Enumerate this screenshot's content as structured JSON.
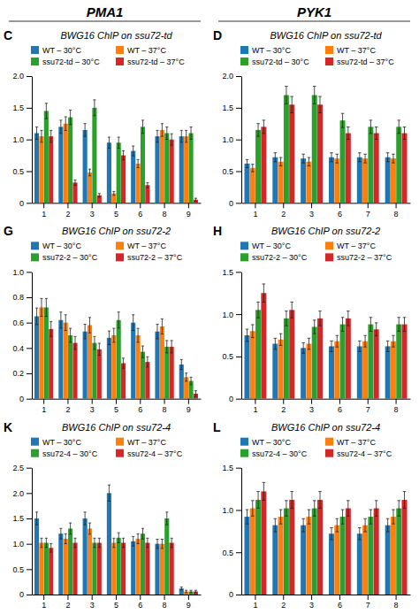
{
  "titles": [
    "PMA1",
    "PYK1"
  ],
  "chart_data": [
    {
      "type": "bar",
      "title": "BWG16 ChIP on ssu72-td",
      "annotations": [
        "C"
      ],
      "categories": [
        "1",
        "2",
        "3",
        "5",
        "6",
        "8",
        "9"
      ],
      "ylim": [
        0,
        2.0
      ],
      "yticks": [
        0,
        0.5,
        {
          "value": 1.0,
          "label": "1.0"
        },
        1.5,
        {
          "value": 2.0,
          "label": "2.0"
        }
      ],
      "grid": false,
      "legend": "upper right",
      "series": [
        {
          "name": "WT – 30°C",
          "values": [
            1.1,
            1.2,
            1.15,
            0.95,
            0.82,
            1.05,
            1.05
          ],
          "errors": [
            0.097,
            0.104,
            0.1005,
            0.0865,
            0.0774,
            0.0935,
            0.0935
          ]
        },
        {
          "name": "WT – 37°C",
          "values": [
            1.05,
            1.25,
            0.48,
            0.15,
            0.62,
            1.15,
            1.05
          ],
          "errors": [
            0.0935,
            0.1075,
            0.0536,
            0.0305,
            0.0634,
            0.1005,
            0.0935
          ]
        },
        {
          "name": "ssu72-td – 30°C",
          "values": [
            1.45,
            1.35,
            1.5,
            0.95,
            1.2,
            1.1,
            1.1
          ],
          "errors": [
            0.1215,
            0.1145,
            0.125,
            0.0865,
            0.104,
            0.097,
            0.097
          ]
        },
        {
          "name": "ssu72-td – 37°C",
          "values": [
            1.05,
            0.32,
            0.12,
            0.75,
            0.28,
            1.0,
            0.05
          ],
          "errors": [
            0.0935,
            0.0424,
            0.0284,
            0.0725,
            0.0396,
            0.09,
            0.0235
          ]
        }
      ]
    },
    {
      "type": "bar",
      "title": "BWG16 ChIP on ssu72-td",
      "annotations": [
        "D"
      ],
      "categories": [
        "1",
        "2",
        "3",
        "6",
        "7",
        "8"
      ],
      "ylim": [
        0,
        2.0
      ],
      "yticks": [
        0,
        0.5,
        {
          "value": 1.0,
          "label": "1.0"
        },
        1.5,
        {
          "value": 2.0,
          "label": "2.0"
        }
      ],
      "grid": false,
      "legend": "upper right",
      "series": [
        {
          "name": "WT – 30°C",
          "values": [
            0.62,
            0.72,
            0.7,
            0.72,
            0.72,
            0.72
          ],
          "errors": [
            0.0634,
            0.0704,
            0.069,
            0.0704,
            0.0704,
            0.0704
          ]
        },
        {
          "name": "WT – 37°C",
          "values": [
            0.55,
            0.65,
            0.65,
            0.7,
            0.7,
            0.7
          ],
          "errors": [
            0.0585,
            0.0655,
            0.0655,
            0.069,
            0.069,
            0.069
          ]
        },
        {
          "name": "ssu72-td – 30°C",
          "values": [
            1.15,
            1.7,
            1.7,
            1.3,
            1.2,
            1.2
          ],
          "errors": [
            0.1005,
            0.139,
            0.139,
            0.111,
            0.104,
            0.104
          ]
        },
        {
          "name": "ssu72-td – 37°C",
          "values": [
            1.2,
            1.55,
            1.55,
            1.1,
            1.1,
            1.1
          ],
          "errors": [
            0.104,
            0.1285,
            0.1285,
            0.097,
            0.097,
            0.097
          ]
        }
      ]
    },
    {
      "type": "bar",
      "title": "BWG16 ChIP on ssu72-2",
      "annotations": [
        "G"
      ],
      "categories": [
        "1",
        "2",
        "3",
        "5",
        "6",
        "8",
        "9"
      ],
      "ylim": [
        0,
        1.0
      ],
      "yticks": [
        0,
        0.2,
        0.4,
        0.6,
        0.8,
        {
          "value": 1.0,
          "label": "1.0"
        }
      ],
      "grid": false,
      "legend": "upper right",
      "series": [
        {
          "name": "WT – 30°C",
          "values": [
            0.65,
            0.62,
            0.53,
            0.48,
            0.6,
            0.53,
            0.27
          ],
          "errors": [
            0.0655,
            0.0634,
            0.0571,
            0.0536,
            0.062,
            0.0571,
            0.0389
          ]
        },
        {
          "name": "WT – 37°C",
          "values": [
            0.72,
            0.6,
            0.58,
            0.5,
            0.5,
            0.57,
            0.17
          ],
          "errors": [
            0.0704,
            0.062,
            0.0606,
            0.055,
            0.055,
            0.0599,
            0.0319
          ]
        },
        {
          "name": "ssu72-2 – 30°C",
          "values": [
            0.72,
            0.5,
            0.44,
            0.62,
            0.37,
            0.41,
            0.14
          ],
          "errors": [
            0.0704,
            0.055,
            0.0508,
            0.0634,
            0.0459,
            0.0487,
            0.0298
          ]
        },
        {
          "name": "ssu72-2 – 37°C",
          "values": [
            0.55,
            0.44,
            0.39,
            0.28,
            0.29,
            0.41,
            0.04
          ],
          "errors": [
            0.0585,
            0.0508,
            0.0473,
            0.0396,
            0.0403,
            0.0487,
            0.0228
          ]
        }
      ]
    },
    {
      "type": "bar",
      "title": "BWG16 ChIP on ssu72-2",
      "annotations": [
        "H"
      ],
      "categories": [
        "1",
        "2",
        "3",
        "6",
        "7",
        "8"
      ],
      "ylim": [
        0,
        1.5
      ],
      "yticks": [
        0,
        0.5,
        {
          "value": 1.0,
          "label": "1.0"
        },
        1.5
      ],
      "grid": false,
      "legend": "upper right",
      "series": [
        {
          "name": "WT – 30°C",
          "values": [
            0.75,
            0.65,
            0.6,
            0.62,
            0.62,
            0.62
          ],
          "errors": [
            0.0725,
            0.0655,
            0.062,
            0.0634,
            0.0634,
            0.0634
          ]
        },
        {
          "name": "WT – 37°C",
          "values": [
            0.8,
            0.7,
            0.65,
            0.68,
            0.68,
            0.68
          ],
          "errors": [
            0.076,
            0.069,
            0.0655,
            0.0676,
            0.0676,
            0.0676
          ]
        },
        {
          "name": "ssu72-2 – 30°C",
          "values": [
            1.05,
            0.95,
            0.85,
            0.88,
            0.88,
            0.88
          ],
          "errors": [
            0.0935,
            0.0865,
            0.0795,
            0.0816,
            0.0816,
            0.0816
          ]
        },
        {
          "name": "ssu72-2 – 37°C",
          "values": [
            1.25,
            1.05,
            0.95,
            0.95,
            0.82,
            0.88
          ],
          "errors": [
            0.1075,
            0.0935,
            0.0865,
            0.0865,
            0.0774,
            0.0816
          ]
        }
      ]
    },
    {
      "type": "bar",
      "title": "BWG16 ChIP on ssu72-4",
      "annotations": [
        "K"
      ],
      "categories": [
        "1",
        "2",
        "3",
        "5",
        "6",
        "8",
        "9"
      ],
      "ylim": [
        0,
        2.5
      ],
      "yticks": [
        0,
        0.5,
        {
          "value": 1.0,
          "label": "1.0"
        },
        1.5,
        {
          "value": 2.0,
          "label": "2.0"
        },
        2.5
      ],
      "grid": false,
      "legend": "upper right",
      "series": [
        {
          "name": "WT – 30°C",
          "values": [
            1.5,
            1.2,
            1.5,
            2.0,
            1.05,
            1.0,
            0.12
          ],
          "errors": [
            0.125,
            0.104,
            0.125,
            0.16,
            0.0935,
            0.09,
            0.0284
          ]
        },
        {
          "name": "WT – 37°C",
          "values": [
            1.02,
            1.1,
            1.3,
            1.02,
            1.1,
            1.0,
            0.06
          ],
          "errors": [
            0.0914,
            0.097,
            0.111,
            0.0914,
            0.097,
            0.09,
            0.0242
          ]
        },
        {
          "name": "ssu72-4 – 30°C",
          "values": [
            1.02,
            1.3,
            1.02,
            1.12,
            1.2,
            1.5,
            0.06
          ],
          "errors": [
            0.0914,
            0.111,
            0.0914,
            0.0984,
            0.104,
            0.125,
            0.0242
          ]
        },
        {
          "name": "ssu72-4 – 37°C",
          "values": [
            0.92,
            1.02,
            1.02,
            1.02,
            1.02,
            1.02,
            0.06
          ],
          "errors": [
            0.0844,
            0.0914,
            0.0914,
            0.0914,
            0.0914,
            0.0914,
            0.0242
          ]
        }
      ]
    },
    {
      "type": "bar",
      "title": "BWG16 ChIP on ssu72-4",
      "annotations": [
        "L"
      ],
      "categories": [
        "1",
        "2",
        "3",
        "6",
        "7",
        "8"
      ],
      "ylim": [
        0,
        1.5
      ],
      "yticks": [
        0,
        0.5,
        {
          "value": 1.0,
          "label": "1.0"
        },
        1.5
      ],
      "grid": false,
      "legend": "upper right",
      "series": [
        {
          "name": "WT – 30°C",
          "values": [
            0.92,
            0.82,
            0.82,
            0.72,
            0.72,
            0.82
          ],
          "errors": [
            0.0844,
            0.0774,
            0.0774,
            0.0704,
            0.0704,
            0.0774
          ]
        },
        {
          "name": "WT – 37°C",
          "values": [
            1.02,
            0.92,
            0.92,
            0.82,
            0.82,
            0.92
          ],
          "errors": [
            0.0914,
            0.0844,
            0.0844,
            0.0774,
            0.0774,
            0.0844
          ]
        },
        {
          "name": "ssu72-4 – 30°C",
          "values": [
            1.12,
            1.02,
            1.02,
            0.92,
            0.92,
            1.02
          ],
          "errors": [
            0.0984,
            0.0914,
            0.0914,
            0.0844,
            0.0844,
            0.0914
          ]
        },
        {
          "name": "ssu72-4 – 37°C",
          "values": [
            1.22,
            1.12,
            1.12,
            1.02,
            1.02,
            1.12
          ],
          "errors": [
            0.1054,
            0.0984,
            0.0984,
            0.0914,
            0.0914,
            0.0984
          ]
        }
      ]
    }
  ]
}
